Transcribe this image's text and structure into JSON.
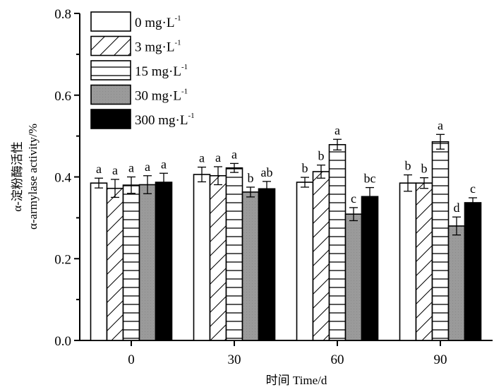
{
  "chart_data": {
    "type": "bar",
    "title": "",
    "xlabel": "时间 Time/d",
    "ylabel_cn": "α-淀粉酶活性",
    "ylabel_en": "α-armylase activity/%",
    "categories": [
      "0",
      "30",
      "60",
      "90"
    ],
    "ylim": [
      0.0,
      0.8
    ],
    "yticks": [
      "0.0",
      "0.2",
      "0.4",
      "0.6",
      "0.8"
    ],
    "yminor_step": 0.1,
    "grid": false,
    "legend_position": "top-left",
    "series": [
      {
        "name": "0 mg·L",
        "sup": "-1",
        "pattern": "white",
        "values": [
          0.385,
          0.406,
          0.387,
          0.385
        ],
        "errors": [
          0.012,
          0.018,
          0.012,
          0.02
        ],
        "letters": [
          "a",
          "a",
          "b",
          "b"
        ]
      },
      {
        "name": "3 mg·L",
        "sup": "-1",
        "pattern": "hatch",
        "values": [
          0.372,
          0.403,
          0.413,
          0.385
        ],
        "errors": [
          0.022,
          0.022,
          0.016,
          0.013
        ],
        "letters": [
          "a",
          "a",
          "b",
          "b"
        ]
      },
      {
        "name": "15 mg·L",
        "sup": "-1",
        "pattern": "hlines",
        "values": [
          0.38,
          0.422,
          0.479,
          0.486
        ],
        "errors": [
          0.02,
          0.011,
          0.013,
          0.018
        ],
        "letters": [
          "a",
          "a",
          "a",
          "a"
        ]
      },
      {
        "name": "30 mg·L",
        "sup": "-1",
        "pattern": "gray",
        "values": [
          0.381,
          0.363,
          0.309,
          0.28
        ],
        "errors": [
          0.022,
          0.012,
          0.016,
          0.022
        ],
        "letters": [
          "a",
          "b",
          "c",
          "d"
        ]
      },
      {
        "name": "300 mg·L",
        "sup": "-1",
        "pattern": "black",
        "values": [
          0.387,
          0.371,
          0.352,
          0.337
        ],
        "errors": [
          0.022,
          0.018,
          0.022,
          0.012
        ],
        "letters": [
          "a",
          "ab",
          "bc",
          "c"
        ]
      }
    ],
    "colors": {
      "white": "#ffffff",
      "gray": "#9a9a9a",
      "black": "#000000",
      "stroke": "#000000"
    }
  }
}
